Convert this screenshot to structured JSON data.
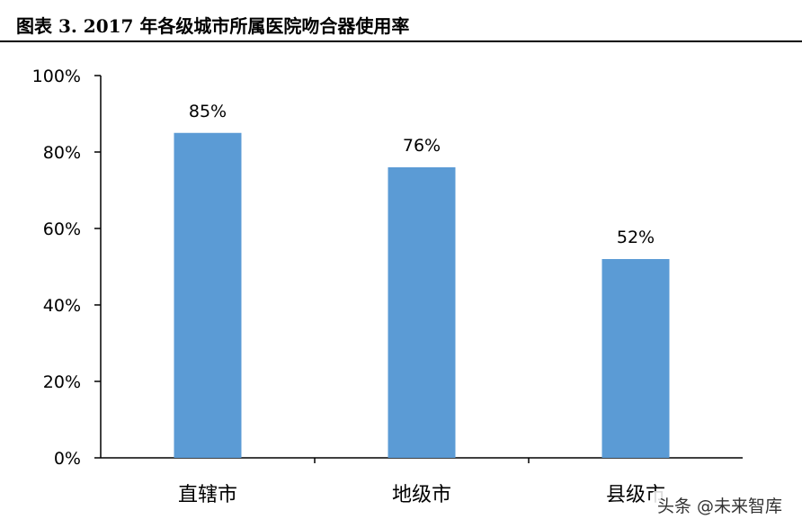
{
  "title": "图表 3. 2017 年各级城市所属医院吻合器使用率",
  "watermark": "头条 @未来智库",
  "chart_data": {
    "type": "bar",
    "categories": [
      "直辖市",
      "地级市",
      "县级市"
    ],
    "values": [
      85,
      76,
      52
    ],
    "data_labels": [
      "85%",
      "76%",
      "52%"
    ],
    "yticks": [
      "0%",
      "20%",
      "40%",
      "60%",
      "80%",
      "100%"
    ],
    "ylim": [
      0,
      100
    ],
    "bar_color": "#5B9BD5",
    "grid": false
  }
}
